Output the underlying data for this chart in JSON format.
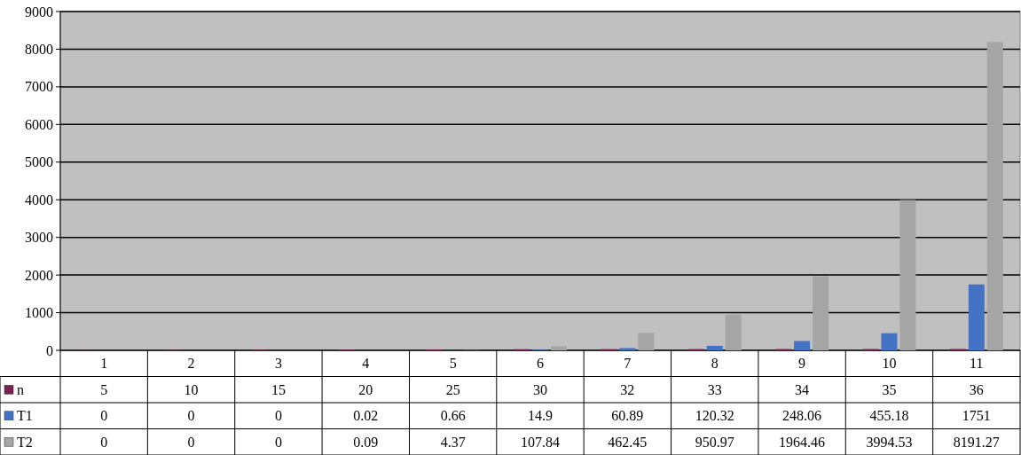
{
  "chart_data": {
    "type": "bar",
    "categories": [
      "1",
      "2",
      "3",
      "4",
      "5",
      "6",
      "7",
      "8",
      "9",
      "10",
      "11"
    ],
    "series": [
      {
        "name": "n",
        "color": "#7b2150",
        "values": [
          5,
          10,
          15,
          20,
          25,
          30,
          32,
          33,
          34,
          35,
          36
        ]
      },
      {
        "name": "T1",
        "color": "#4472c4",
        "values": [
          0,
          0,
          0,
          0.02,
          0.66,
          14.9,
          60.89,
          120.32,
          248.06,
          455.18,
          1751
        ]
      },
      {
        "name": "T2",
        "color": "#a5a5a5",
        "values": [
          0,
          0,
          0,
          0.09,
          4.37,
          107.84,
          462.45,
          950.97,
          1964.46,
          3994.53,
          8191.27
        ]
      }
    ],
    "ylim": [
      0,
      9000
    ],
    "yticks": [
      0,
      1000,
      2000,
      3000,
      4000,
      5000,
      6000,
      7000,
      8000,
      9000
    ],
    "grid": "y",
    "legend": "bottom left",
    "data_labels": true
  }
}
